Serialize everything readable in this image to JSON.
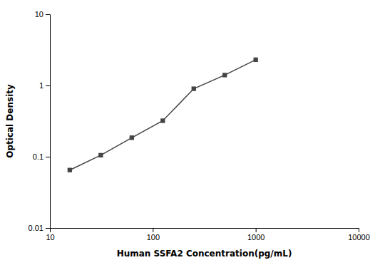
{
  "chart_data": {
    "type": "line",
    "x": [
      15.6,
      31.2,
      62.5,
      125,
      250,
      500,
      1000
    ],
    "values": [
      0.065,
      0.105,
      0.185,
      0.32,
      0.9,
      1.4,
      2.3
    ],
    "xlabel": "Human SSFA2 Concentration(pg/mL)",
    "ylabel": "Optical Density",
    "log": true,
    "xlim": [
      10,
      10000
    ],
    "ylim": [
      0.01,
      10
    ],
    "xticks": [
      10,
      100,
      1000,
      10000
    ],
    "yticks": [
      0.01,
      0.1,
      1,
      10
    ],
    "color": "#444444",
    "marker": "square"
  }
}
